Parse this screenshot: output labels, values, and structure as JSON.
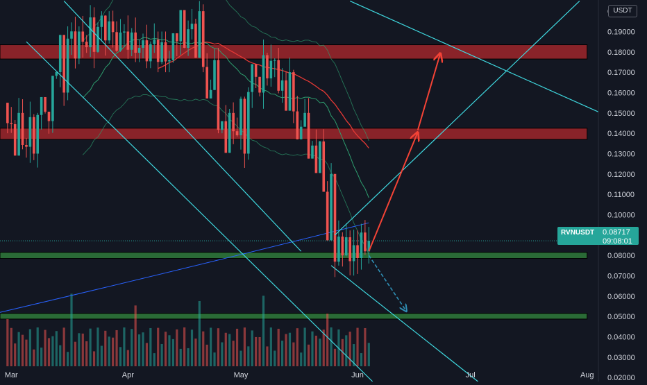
{
  "currency_badge": "USDT",
  "price_tag": {
    "symbol": "RVNUSDT",
    "price": "0.08717",
    "countdown": "09:08:01",
    "color": "#26a69a"
  },
  "colors": {
    "background": "#131722",
    "bull_candle": "#26a69a",
    "bear_candle": "#ef5350",
    "resistance_zone": "#b2282c",
    "support_zone": "#2f7a3a",
    "trendline": "#3fd9e0",
    "projection_arrow": "#f44336",
    "projection_dashed": "#2f8fb5",
    "bb_bands": "#2e9e6f",
    "ma_red": "#e53935",
    "ma_blue": "#2962ff"
  },
  "chart_data": {
    "type": "candlestick",
    "title": "",
    "xlabel": "",
    "ylabel": "",
    "y_axis": {
      "ticks": [
        "0.20000",
        "0.19000",
        "0.18000",
        "0.17000",
        "0.16000",
        "0.15000",
        "0.14000",
        "0.13000",
        "0.12000",
        "0.11000",
        "0.10000",
        "0.09000",
        "0.08000",
        "0.07000",
        "0.06000",
        "0.05000",
        "0.04000",
        "0.03000",
        "0.02000"
      ],
      "range": [
        0.018,
        0.2055
      ]
    },
    "x_axis": {
      "labels": [
        {
          "label": "Mar",
          "date": "2022-03-01"
        },
        {
          "label": "Apr",
          "date": "2022-04-01"
        },
        {
          "label": "May",
          "date": "2022-05-01"
        },
        {
          "label": "Jun",
          "date": "2022-06-01"
        },
        {
          "label": "Jul",
          "date": "2022-07-01"
        },
        {
          "label": "Aug",
          "date": "2022-08-01"
        }
      ],
      "range": [
        "2022-02-26",
        "2022-08-04"
      ]
    },
    "zones": [
      {
        "name": "resistance",
        "low": 0.1765,
        "high": 0.1835,
        "start": "2022-02-26",
        "end": "2022-08-01"
      },
      {
        "name": "resistance",
        "low": 0.137,
        "high": 0.1425,
        "start": "2022-02-26",
        "end": "2022-08-01"
      },
      {
        "name": "support",
        "low": 0.0785,
        "high": 0.0815,
        "start": "2022-02-26",
        "end": "2022-08-01"
      },
      {
        "name": "support",
        "low": 0.0487,
        "high": 0.0515,
        "start": "2022-02-26",
        "end": "2022-08-01"
      }
    ],
    "current_price": 0.08717,
    "ohlc_sampled": [
      {
        "date": "2022-02-28",
        "o": 0.155,
        "h": 0.172,
        "l": 0.14,
        "c": 0.15
      },
      {
        "date": "2022-03-04",
        "o": 0.15,
        "h": 0.16,
        "l": 0.125,
        "c": 0.13
      },
      {
        "date": "2022-03-08",
        "o": 0.13,
        "h": 0.15,
        "l": 0.12,
        "c": 0.146
      },
      {
        "date": "2022-03-12",
        "o": 0.146,
        "h": 0.165,
        "l": 0.14,
        "c": 0.16
      },
      {
        "date": "2022-03-16",
        "o": 0.16,
        "h": 0.205,
        "l": 0.152,
        "c": 0.19
      },
      {
        "date": "2022-03-20",
        "o": 0.19,
        "h": 0.203,
        "l": 0.17,
        "c": 0.18
      },
      {
        "date": "2022-03-24",
        "o": 0.18,
        "h": 0.2,
        "l": 0.168,
        "c": 0.195
      },
      {
        "date": "2022-03-28",
        "o": 0.195,
        "h": 0.205,
        "l": 0.18,
        "c": 0.19
      },
      {
        "date": "2022-04-01",
        "o": 0.19,
        "h": 0.2,
        "l": 0.175,
        "c": 0.182
      },
      {
        "date": "2022-04-05",
        "o": 0.182,
        "h": 0.196,
        "l": 0.172,
        "c": 0.186
      },
      {
        "date": "2022-04-09",
        "o": 0.186,
        "h": 0.19,
        "l": 0.17,
        "c": 0.176
      },
      {
        "date": "2022-04-13",
        "o": 0.176,
        "h": 0.188,
        "l": 0.172,
        "c": 0.182
      },
      {
        "date": "2022-04-17",
        "o": 0.182,
        "h": 0.205,
        "l": 0.178,
        "c": 0.2
      },
      {
        "date": "2022-04-21",
        "o": 0.2,
        "h": 0.205,
        "l": 0.17,
        "c": 0.176
      },
      {
        "date": "2022-04-25",
        "o": 0.176,
        "h": 0.182,
        "l": 0.14,
        "c": 0.15
      },
      {
        "date": "2022-04-29",
        "o": 0.15,
        "h": 0.158,
        "l": 0.112,
        "c": 0.13
      },
      {
        "date": "2022-05-03",
        "o": 0.13,
        "h": 0.165,
        "l": 0.126,
        "c": 0.16
      },
      {
        "date": "2022-05-07",
        "o": 0.16,
        "h": 0.188,
        "l": 0.15,
        "c": 0.176
      },
      {
        "date": "2022-05-11",
        "o": 0.176,
        "h": 0.182,
        "l": 0.155,
        "c": 0.17
      },
      {
        "date": "2022-05-15",
        "o": 0.17,
        "h": 0.172,
        "l": 0.145,
        "c": 0.15
      },
      {
        "date": "2022-05-19",
        "o": 0.15,
        "h": 0.158,
        "l": 0.13,
        "c": 0.136
      },
      {
        "date": "2022-05-23",
        "o": 0.136,
        "h": 0.142,
        "l": 0.118,
        "c": 0.12
      },
      {
        "date": "2022-05-26",
        "o": 0.12,
        "h": 0.122,
        "l": 0.062,
        "c": 0.08
      },
      {
        "date": "2022-05-29",
        "o": 0.08,
        "h": 0.1,
        "l": 0.055,
        "c": 0.085
      },
      {
        "date": "2022-06-01",
        "o": 0.085,
        "h": 0.103,
        "l": 0.07,
        "c": 0.082
      },
      {
        "date": "2022-06-04",
        "o": 0.082,
        "h": 0.094,
        "l": 0.076,
        "c": 0.08717
      }
    ],
    "annotations": [
      {
        "type": "trendline",
        "from": {
          "date": "2022-03-05",
          "price": 0.185
        },
        "to": {
          "date": "2022-06-05",
          "price": 0.018
        }
      },
      {
        "type": "trendline",
        "from": {
          "date": "2022-03-15",
          "price": 0.205
        },
        "to": {
          "date": "2022-05-17",
          "price": 0.082
        }
      },
      {
        "type": "trendline",
        "from": {
          "date": "2022-05-25",
          "price": 0.075
        },
        "to": {
          "date": "2022-07-03",
          "price": 0.018
        }
      },
      {
        "type": "trendline",
        "from": {
          "date": "2022-05-26",
          "price": 0.09
        },
        "to": {
          "date": "2022-07-30",
          "price": 0.205
        }
      },
      {
        "type": "trendline",
        "from": {
          "date": "2022-05-30",
          "price": 0.205
        },
        "to": {
          "date": "2022-08-04",
          "price": 0.1505
        }
      },
      {
        "type": "arrow",
        "color": "red",
        "from": {
          "date": "2022-06-04",
          "price": 0.082
        },
        "to": {
          "date": "2022-06-17",
          "price": 0.1405
        }
      },
      {
        "type": "arrow",
        "color": "red",
        "from": {
          "date": "2022-06-17",
          "price": 0.1415
        },
        "to": {
          "date": "2022-06-23",
          "price": 0.1793
        }
      },
      {
        "type": "arrow",
        "color": "blue",
        "from": {
          "date": "2022-06-04",
          "price": 0.08
        },
        "to": {
          "date": "2022-06-14",
          "price": 0.0525
        }
      }
    ],
    "grid": false,
    "legend": "none",
    "volume": true
  }
}
